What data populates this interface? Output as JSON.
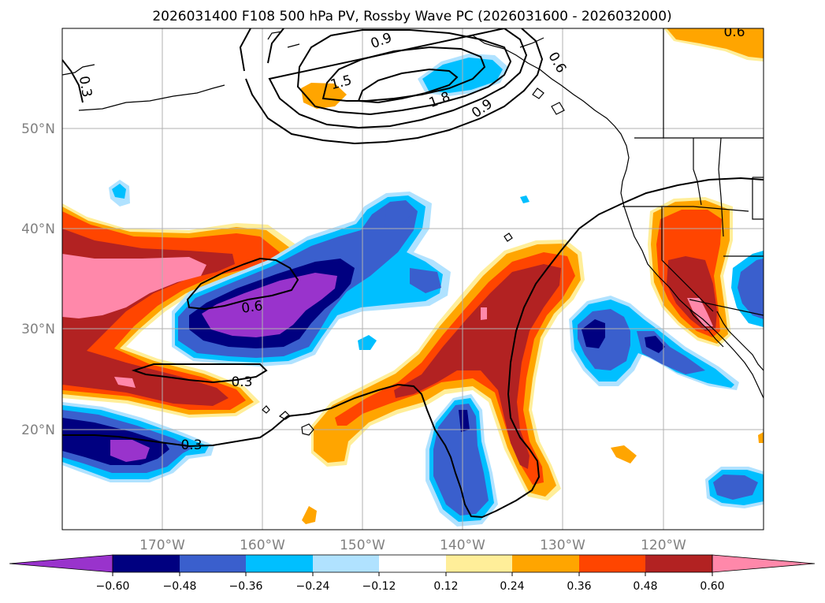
{
  "title": "2026031400 F108 500 hPa PV, Rossby Wave PC (2026031600 - 2026032000)",
  "axes": {
    "lat_labels": [
      "50°N",
      "40°N",
      "30°N",
      "20°N"
    ],
    "lon_labels": [
      "170°W",
      "160°W",
      "150°W",
      "140°W",
      "130°W",
      "120°W"
    ]
  },
  "colorbar": {
    "ticks": [
      "−0.60",
      "−0.48",
      "−0.36",
      "−0.24",
      "−0.12",
      "0.12",
      "0.24",
      "0.36",
      "0.48",
      "0.60"
    ],
    "colors": [
      "#9933cc",
      "#000080",
      "#3a5fcd",
      "#00bfff",
      "#b0e2ff",
      "#ffffff",
      "#ffee99",
      "#ffa500",
      "#ff4500",
      "#b22222",
      "#ff88aa"
    ]
  },
  "contour_labels": [
    "0.9",
    "1.5",
    "1.8",
    "0.9",
    "0.3",
    "0.6",
    "0.3",
    "0.3",
    "0.6",
    "0.6"
  ],
  "colors": {
    "purple": "#9933cc",
    "navy": "#000080",
    "royal": "#3a5fcd",
    "sky": "#00bfff",
    "light_blue": "#b0e2ff",
    "yellow": "#ffee99",
    "orange": "#ffa500",
    "red_orange": "#ff4500",
    "dark_red": "#b22222",
    "pink": "#ff88aa",
    "grid": "#b0b0b0",
    "axis_label": "#808080"
  }
}
